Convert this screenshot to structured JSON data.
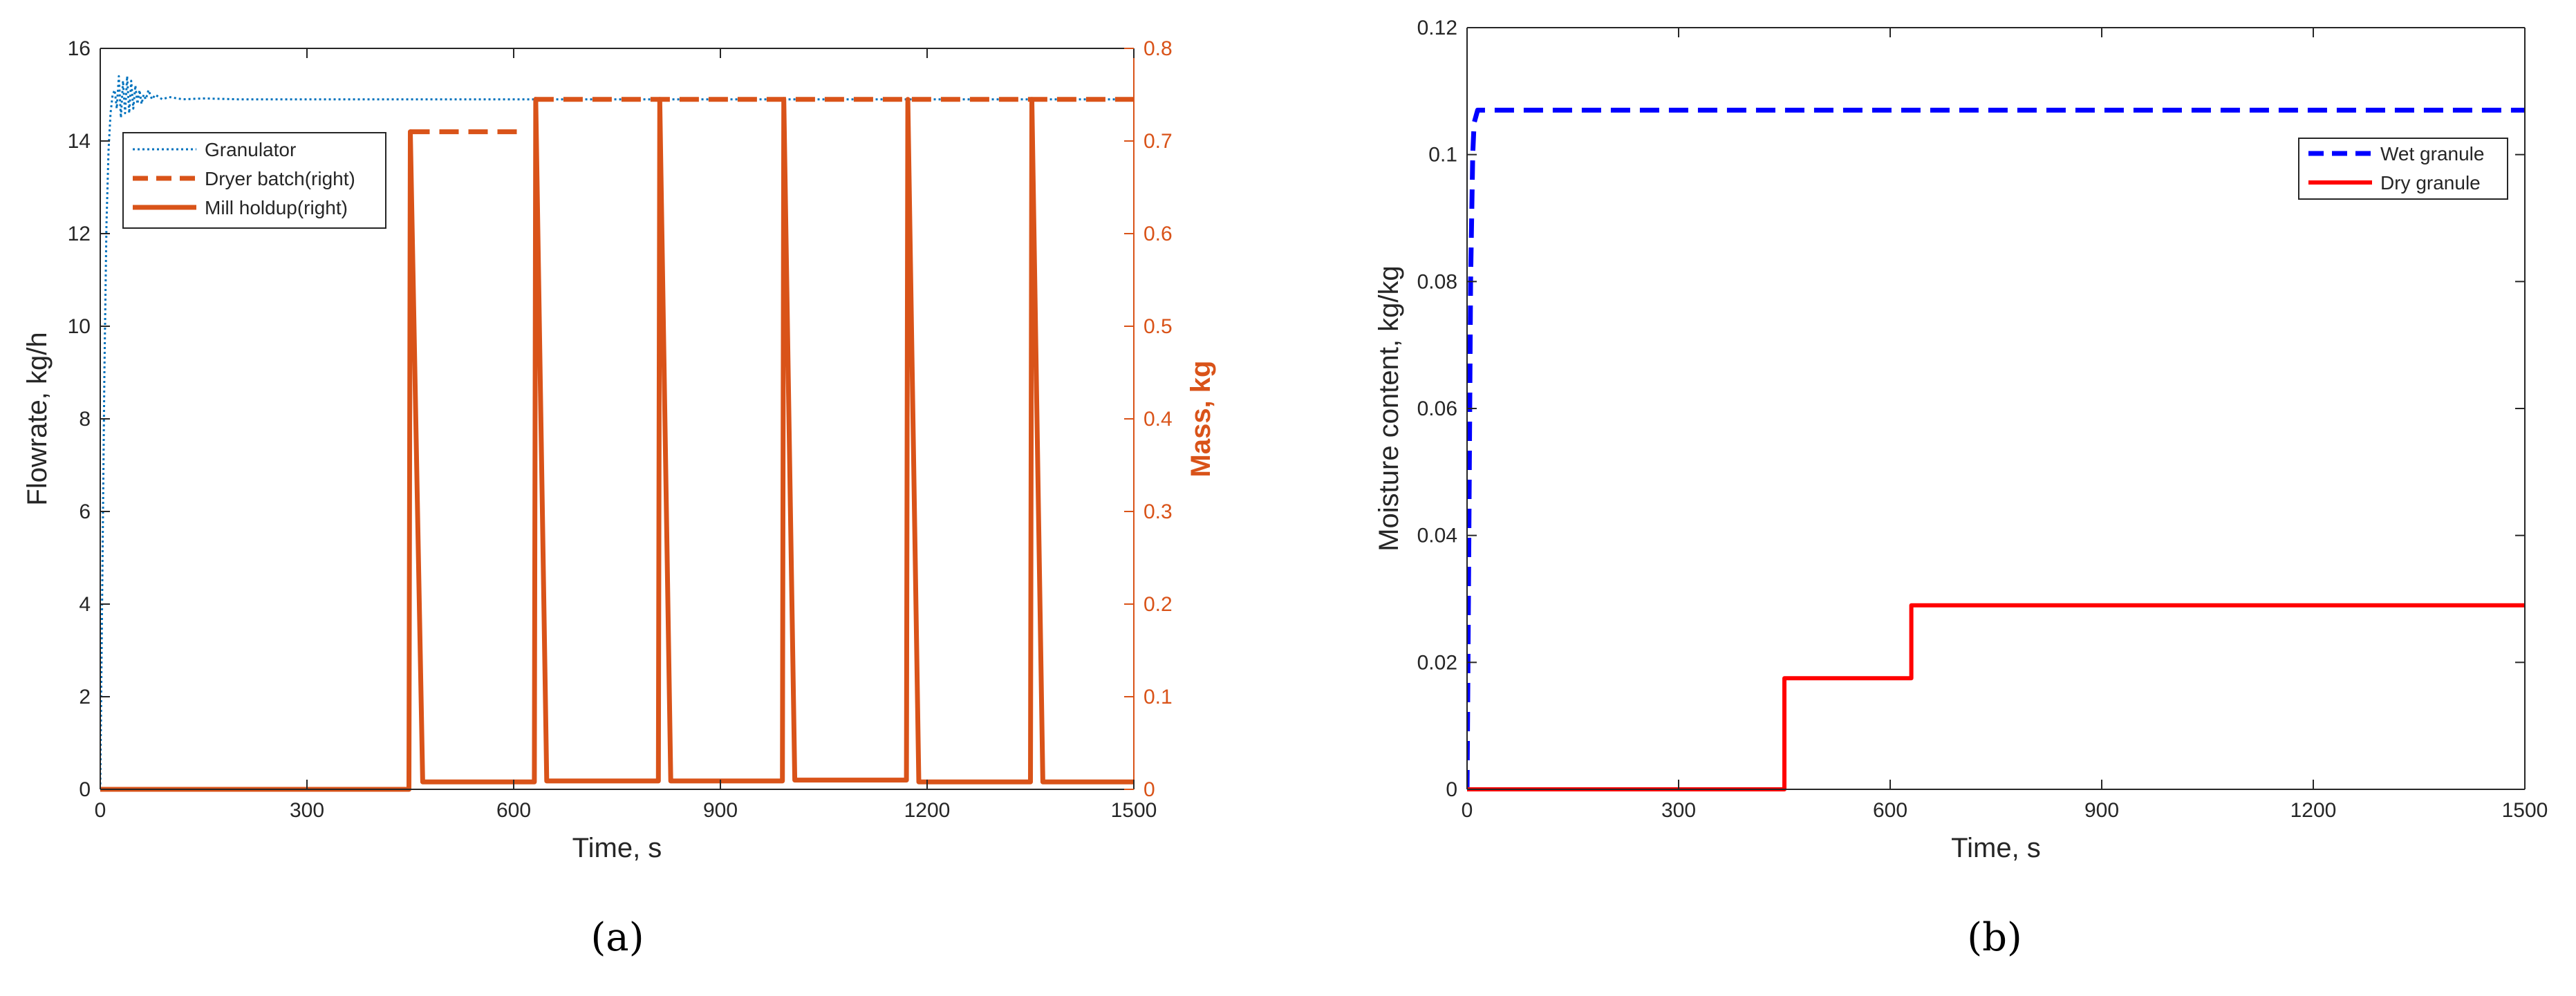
{
  "chart_data": [
    {
      "panel_label": "(a)",
      "type": "line",
      "xlabel": "Time, s",
      "ylabel": "Flowrate, kg/h",
      "ylabel_right": "Mass, kg",
      "xlim": [
        0,
        1500
      ],
      "xticks": [
        0,
        300,
        600,
        900,
        1200,
        1500
      ],
      "ylim": [
        0,
        16
      ],
      "yticks": [
        0,
        2,
        4,
        6,
        8,
        10,
        12,
        14,
        16
      ],
      "ylim_right": [
        0,
        0.8
      ],
      "yticks_right": [
        0,
        0.1,
        0.2,
        0.3,
        0.4,
        0.5,
        0.6,
        0.7,
        0.8
      ],
      "grid": false,
      "legend_position": "top-left",
      "series": [
        {
          "name": "Granulator",
          "axis": "left",
          "color": "#0072BD",
          "style": "dotted",
          "x": [
            0,
            3,
            6,
            9,
            12,
            15,
            18,
            21,
            24,
            27,
            30,
            33,
            36,
            39,
            42,
            45,
            48,
            51,
            54,
            57,
            60,
            63,
            66,
            70,
            75,
            80,
            90,
            100,
            120,
            150,
            200,
            300,
            450,
            600,
            900,
            1200,
            1500
          ],
          "y": [
            0,
            4.5,
            9.0,
            12.2,
            13.8,
            14.6,
            15.0,
            15.1,
            14.7,
            15.4,
            14.5,
            15.3,
            14.6,
            15.4,
            14.6,
            15.3,
            14.7,
            15.2,
            14.8,
            15.1,
            14.8,
            15.0,
            14.9,
            15.1,
            14.9,
            15.0,
            14.9,
            14.95,
            14.9,
            14.92,
            14.9,
            14.9,
            14.9,
            14.9,
            14.9,
            14.9,
            14.9
          ]
        },
        {
          "name": "Dryer batch(right)",
          "axis": "right",
          "color": "#D95319",
          "style": "dashed",
          "x": [
            450,
            610,
            610,
            630,
            630,
            1500
          ],
          "y": [
            0.71,
            0.71,
            null,
            0.745,
            0.745,
            0.745
          ]
        },
        {
          "name": "Mill holdup(right)",
          "axis": "right",
          "color": "#D95319",
          "style": "solid",
          "x": [
            0,
            448,
            450,
            468,
            630,
            632,
            648,
            810,
            812,
            828,
            990,
            992,
            1008,
            1170,
            1172,
            1188,
            1350,
            1352,
            1368,
            1500
          ],
          "y": [
            0,
            0,
            0.71,
            0.008,
            0.008,
            0.745,
            0.009,
            0.009,
            0.745,
            0.009,
            0.009,
            0.745,
            0.01,
            0.01,
            0.745,
            0.008,
            0.008,
            0.745,
            0.008,
            0.008
          ]
        }
      ]
    },
    {
      "panel_label": "(b)",
      "type": "line",
      "xlabel": "Time, s",
      "ylabel": "Moisture content, kg/kg",
      "xlim": [
        0,
        1500
      ],
      "xticks": [
        0,
        300,
        600,
        900,
        1200,
        1500
      ],
      "ylim": [
        0,
        0.12
      ],
      "yticks": [
        0,
        0.02,
        0.04,
        0.06,
        0.08,
        0.1,
        0.12
      ],
      "grid": false,
      "legend_position": "top-right",
      "series": [
        {
          "name": "Wet granule",
          "color": "#0000FF",
          "style": "dashed",
          "x": [
            0,
            2,
            5,
            8,
            10,
            15,
            1500
          ],
          "y": [
            0,
            0.03,
            0.08,
            0.1,
            0.105,
            0.107,
            0.107
          ]
        },
        {
          "name": "Dry granule",
          "color": "#FF0000",
          "style": "solid",
          "x": [
            0,
            450,
            450,
            630,
            630,
            1500
          ],
          "y": [
            0,
            0,
            0.0175,
            0.0175,
            0.029,
            0.029
          ]
        }
      ]
    }
  ]
}
